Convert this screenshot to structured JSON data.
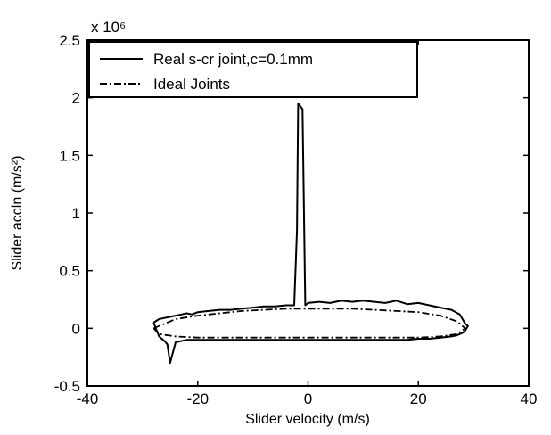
{
  "chart_data": {
    "type": "line",
    "title": "",
    "xlabel": "Slider velocity (m/s)",
    "ylabel": "Slider accln (m/s²)",
    "y_exponent_label": "x 10⁶",
    "xlim": [
      -40,
      40
    ],
    "ylim": [
      -0.5,
      2.5
    ],
    "xticks": [
      -40,
      -20,
      0,
      20,
      40
    ],
    "yticks": [
      -0.5,
      0,
      0.5,
      1,
      1.5,
      2,
      2.5
    ],
    "xtick_labels": [
      "-40",
      "-20",
      "0",
      "20",
      "40"
    ],
    "ytick_labels": [
      "-0.5",
      "0",
      "0.5",
      "1",
      "1.5",
      "2",
      "2.5"
    ],
    "grid": false,
    "legend_position": "top-left",
    "series": [
      {
        "name": "Real s-cr joint,c=0.1mm",
        "style": "solid",
        "x": [
          -28,
          -27,
          -26,
          -25,
          -24,
          -23,
          -22,
          -21,
          -20,
          -18,
          -16,
          -14,
          -12,
          -10,
          -8,
          -6,
          -4,
          -2.5,
          -2,
          -1.8,
          -1.3,
          -1.0,
          -0.5,
          0,
          2,
          4,
          6,
          8,
          10,
          12,
          14,
          16,
          18,
          20,
          22,
          24,
          26,
          27.5,
          28,
          28.5,
          29,
          28.5,
          28,
          27,
          26,
          24,
          22,
          20,
          18,
          16,
          14,
          12,
          10,
          8,
          6,
          4,
          2,
          0,
          -2,
          -4,
          -6,
          -8,
          -10,
          -12,
          -14,
          -16,
          -18,
          -20,
          -22,
          -24,
          -25,
          -25.5,
          -26,
          -27,
          -28
        ],
        "y": [
          0.05,
          0.08,
          0.09,
          0.1,
          0.11,
          0.12,
          0.13,
          0.12,
          0.14,
          0.15,
          0.16,
          0.16,
          0.17,
          0.18,
          0.19,
          0.19,
          0.2,
          0.2,
          0.85,
          1.95,
          1.92,
          1.9,
          0.2,
          0.22,
          0.23,
          0.22,
          0.24,
          0.23,
          0.24,
          0.23,
          0.22,
          0.24,
          0.21,
          0.22,
          0.2,
          0.18,
          0.16,
          0.12,
          0.08,
          0.04,
          0.02,
          -0.02,
          -0.04,
          -0.06,
          -0.07,
          -0.08,
          -0.09,
          -0.09,
          -0.1,
          -0.1,
          -0.1,
          -0.1,
          -0.1,
          -0.1,
          -0.1,
          -0.1,
          -0.1,
          -0.1,
          -0.1,
          -0.1,
          -0.1,
          -0.1,
          -0.1,
          -0.1,
          -0.1,
          -0.1,
          -0.1,
          -0.1,
          -0.1,
          -0.12,
          -0.3,
          -0.14,
          -0.11,
          -0.07,
          0.05
        ]
      },
      {
        "name": "Ideal Joints",
        "style": "dashdot",
        "x": [
          -28,
          -24,
          -20,
          -16,
          -12,
          -8,
          -4,
          0,
          4,
          8,
          12,
          16,
          20,
          24,
          27,
          28.5,
          27,
          24,
          20,
          16,
          12,
          8,
          4,
          0,
          -4,
          -8,
          -12,
          -16,
          -20,
          -24,
          -27,
          -28
        ],
        "y": [
          0.0,
          0.08,
          0.11,
          0.13,
          0.15,
          0.16,
          0.17,
          0.17,
          0.17,
          0.17,
          0.16,
          0.15,
          0.14,
          0.11,
          0.06,
          0.0,
          -0.05,
          -0.07,
          -0.08,
          -0.08,
          -0.08,
          -0.08,
          -0.08,
          -0.08,
          -0.08,
          -0.08,
          -0.08,
          -0.08,
          -0.08,
          -0.07,
          -0.05,
          0.0
        ]
      }
    ]
  }
}
